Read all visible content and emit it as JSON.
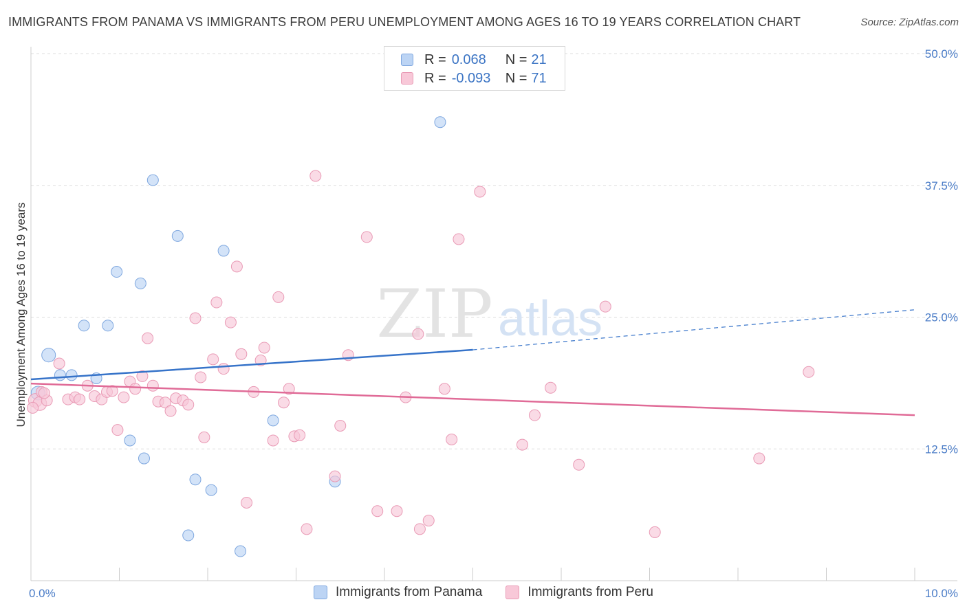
{
  "header": {
    "title": "IMMIGRANTS FROM PANAMA VS IMMIGRANTS FROM PERU UNEMPLOYMENT AMONG AGES 16 TO 19 YEARS CORRELATION CHART",
    "source": "Source: ZipAtlas.com"
  },
  "watermark": {
    "zip": "ZIP",
    "atlas": "atlas"
  },
  "legend": {
    "rows": [
      {
        "r_label": "R =",
        "r_value": "0.068",
        "n_label": "N =",
        "n_value": "21"
      },
      {
        "r_label": "R =",
        "r_value": "-0.093",
        "n_label": "N =",
        "n_value": "71"
      }
    ]
  },
  "colors": {
    "panama_fill": "#bcd4f4",
    "panama_stroke": "#7ea7df",
    "panama_line": "#3673c9",
    "peru_fill": "#f8c8d8",
    "peru_stroke": "#e99ab5",
    "peru_line": "#e06b97",
    "tick_text": "#4a7cc7",
    "grid": "#dddddd"
  },
  "chart_data": {
    "type": "scatter",
    "title": "IMMIGRANTS FROM PANAMA VS IMMIGRANTS FROM PERU UNEMPLOYMENT AMONG AGES 16 TO 19 YEARS CORRELATION CHART",
    "ylabel": "Unemployment Among Ages 16 to 19 years",
    "xlim": [
      0,
      10
    ],
    "ylim": [
      0,
      50
    ],
    "y_ticks": [
      12.5,
      25.0,
      37.5,
      50.0
    ],
    "y_tick_labels": [
      "12.5%",
      "25.0%",
      "37.5%",
      "50.0%"
    ],
    "x_tick_labels": [
      "0.0%",
      "10.0%"
    ],
    "grid": true,
    "legend_position": "top-center",
    "series": [
      {
        "name": "Immigrants from Panama",
        "r": 0.068,
        "n": 21,
        "trend": {
          "x": [
            0,
            5.0
          ],
          "y": [
            19.1,
            21.9
          ],
          "dashed_to": [
            10.0,
            25.7
          ]
        },
        "points": [
          {
            "x": 0.08,
            "y": 17.8
          },
          {
            "x": 0.2,
            "y": 21.4
          },
          {
            "x": 0.33,
            "y": 19.5
          },
          {
            "x": 0.46,
            "y": 19.5
          },
          {
            "x": 0.6,
            "y": 24.2
          },
          {
            "x": 0.74,
            "y": 19.2
          },
          {
            "x": 0.87,
            "y": 24.2
          },
          {
            "x": 0.97,
            "y": 29.3
          },
          {
            "x": 1.12,
            "y": 13.3
          },
          {
            "x": 1.24,
            "y": 28.2
          },
          {
            "x": 1.28,
            "y": 11.6
          },
          {
            "x": 1.38,
            "y": 38.0
          },
          {
            "x": 1.66,
            "y": 32.7
          },
          {
            "x": 1.78,
            "y": 4.3
          },
          {
            "x": 1.86,
            "y": 9.6
          },
          {
            "x": 2.04,
            "y": 8.6
          },
          {
            "x": 2.18,
            "y": 31.3
          },
          {
            "x": 2.37,
            "y": 2.8
          },
          {
            "x": 2.74,
            "y": 15.2
          },
          {
            "x": 3.44,
            "y": 9.4
          },
          {
            "x": 4.63,
            "y": 43.5
          }
        ]
      },
      {
        "name": "Immigrants from Peru",
        "r": -0.093,
        "n": 71,
        "trend": {
          "x": [
            0,
            10.0
          ],
          "y": [
            18.7,
            15.7
          ]
        },
        "points": [
          {
            "x": 0.05,
            "y": 17.1
          },
          {
            "x": 0.1,
            "y": 16.8
          },
          {
            "x": 0.12,
            "y": 17.9
          },
          {
            "x": 0.18,
            "y": 17.1
          },
          {
            "x": 0.32,
            "y": 20.6
          },
          {
            "x": 0.42,
            "y": 17.2
          },
          {
            "x": 0.5,
            "y": 17.4
          },
          {
            "x": 0.55,
            "y": 17.2
          },
          {
            "x": 0.64,
            "y": 18.5
          },
          {
            "x": 0.72,
            "y": 17.5
          },
          {
            "x": 0.8,
            "y": 17.2
          },
          {
            "x": 0.86,
            "y": 17.9
          },
          {
            "x": 0.92,
            "y": 18.0
          },
          {
            "x": 0.98,
            "y": 14.3
          },
          {
            "x": 1.05,
            "y": 17.4
          },
          {
            "x": 1.12,
            "y": 18.9
          },
          {
            "x": 1.18,
            "y": 18.2
          },
          {
            "x": 1.26,
            "y": 19.4
          },
          {
            "x": 1.32,
            "y": 23.0
          },
          {
            "x": 1.38,
            "y": 18.5
          },
          {
            "x": 1.44,
            "y": 17.0
          },
          {
            "x": 1.52,
            "y": 16.9
          },
          {
            "x": 1.58,
            "y": 16.1
          },
          {
            "x": 1.64,
            "y": 17.3
          },
          {
            "x": 1.72,
            "y": 17.1
          },
          {
            "x": 1.78,
            "y": 16.7
          },
          {
            "x": 1.86,
            "y": 24.9
          },
          {
            "x": 1.92,
            "y": 19.3
          },
          {
            "x": 1.96,
            "y": 13.6
          },
          {
            "x": 2.06,
            "y": 21.0
          },
          {
            "x": 2.1,
            "y": 26.4
          },
          {
            "x": 2.18,
            "y": 20.1
          },
          {
            "x": 2.26,
            "y": 24.5
          },
          {
            "x": 2.33,
            "y": 29.8
          },
          {
            "x": 2.38,
            "y": 21.5
          },
          {
            "x": 2.44,
            "y": 7.4
          },
          {
            "x": 2.52,
            "y": 17.9
          },
          {
            "x": 2.6,
            "y": 20.9
          },
          {
            "x": 2.64,
            "y": 22.1
          },
          {
            "x": 2.74,
            "y": 13.3
          },
          {
            "x": 2.8,
            "y": 26.9
          },
          {
            "x": 2.86,
            "y": 16.9
          },
          {
            "x": 2.92,
            "y": 18.2
          },
          {
            "x": 2.98,
            "y": 13.7
          },
          {
            "x": 3.04,
            "y": 13.8
          },
          {
            "x": 3.12,
            "y": 4.9
          },
          {
            "x": 3.22,
            "y": 38.4
          },
          {
            "x": 3.44,
            "y": 9.9
          },
          {
            "x": 3.5,
            "y": 14.7
          },
          {
            "x": 3.59,
            "y": 21.4
          },
          {
            "x": 3.8,
            "y": 32.6
          },
          {
            "x": 3.92,
            "y": 6.6
          },
          {
            "x": 4.14,
            "y": 6.6
          },
          {
            "x": 4.24,
            "y": 17.4
          },
          {
            "x": 4.38,
            "y": 23.4
          },
          {
            "x": 4.4,
            "y": 4.9
          },
          {
            "x": 4.5,
            "y": 5.7
          },
          {
            "x": 4.68,
            "y": 18.2
          },
          {
            "x": 4.76,
            "y": 13.4
          },
          {
            "x": 4.84,
            "y": 32.4
          },
          {
            "x": 5.08,
            "y": 36.9
          },
          {
            "x": 5.56,
            "y": 12.9
          },
          {
            "x": 5.7,
            "y": 15.7
          },
          {
            "x": 5.88,
            "y": 18.3
          },
          {
            "x": 6.2,
            "y": 11.0
          },
          {
            "x": 6.5,
            "y": 26.0
          },
          {
            "x": 7.06,
            "y": 4.6
          },
          {
            "x": 8.24,
            "y": 11.6
          },
          {
            "x": 8.8,
            "y": 19.8
          },
          {
            "x": 0.02,
            "y": 16.4
          },
          {
            "x": 0.15,
            "y": 17.8
          }
        ]
      }
    ]
  }
}
